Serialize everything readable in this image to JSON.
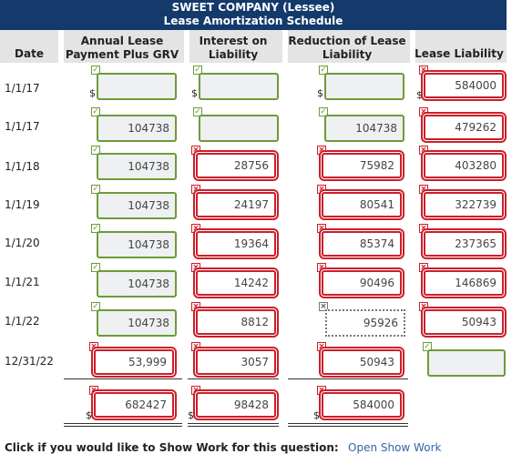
{
  "title": {
    "line1": "SWEET COMPANY (Lessee)",
    "line2": "Lease Amortization Schedule"
  },
  "columns": {
    "date": "Date",
    "payment_1": "Annual Lease",
    "payment_2": "Payment Plus GRV",
    "interest_1": "Interest on",
    "interest_2": "Liability",
    "reduction_1": "Reduction of Lease",
    "reduction_2": "Liability",
    "liability": "Lease Liability"
  },
  "currency_symbol": "$",
  "rows": [
    {
      "date": "1/1/17",
      "payment": "",
      "interest": "",
      "reduction": "",
      "liability": "584000"
    },
    {
      "date": "1/1/17",
      "payment": "104738",
      "interest": "",
      "reduction": "104738",
      "liability": "479262"
    },
    {
      "date": "1/1/18",
      "payment": "104738",
      "interest": "28756",
      "reduction": "75982",
      "liability": "403280"
    },
    {
      "date": "1/1/19",
      "payment": "104738",
      "interest": "24197",
      "reduction": "80541",
      "liability": "322739"
    },
    {
      "date": "1/1/20",
      "payment": "104738",
      "interest": "19364",
      "reduction": "85374",
      "liability": "237365"
    },
    {
      "date": "1/1/21",
      "payment": "104738",
      "interest": "14242",
      "reduction": "90496",
      "liability": "146869"
    },
    {
      "date": "1/1/22",
      "payment": "104738",
      "interest": "8812",
      "reduction": "95926",
      "liability": "50943"
    },
    {
      "date": "12/31/22",
      "payment": "53,999",
      "interest": "3057",
      "reduction": "50943",
      "liability": ""
    }
  ],
  "totals": {
    "payment": "682427",
    "interest": "98428",
    "reduction": "584000"
  },
  "status_colors": {
    "correct": "#6e9b37",
    "incorrect": "#cc1f2a",
    "header": "#133a6b"
  },
  "footer": {
    "prompt": "Click if you would like to Show Work for this question:",
    "link": "Open Show Work"
  }
}
